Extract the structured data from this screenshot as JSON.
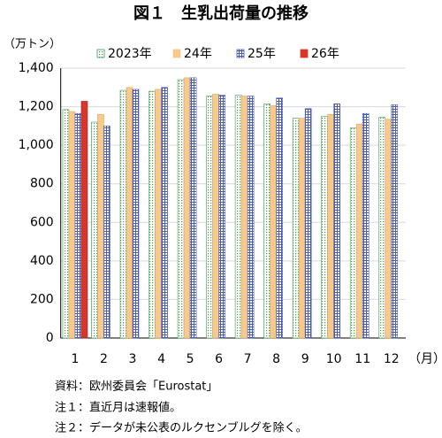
{
  "chart_data": {
    "type": "bar",
    "title": "図１　生乳出荷量の推移",
    "y_label": "（万トン）",
    "x_label": "（月）",
    "categories": [
      "1",
      "2",
      "3",
      "4",
      "5",
      "6",
      "7",
      "8",
      "9",
      "10",
      "11",
      "12"
    ],
    "series": [
      {
        "name": "2023年",
        "color": "#3f9a52",
        "pattern": "dots",
        "values": [
          1185,
          1120,
          1285,
          1280,
          1340,
          1255,
          1260,
          1215,
          1140,
          1150,
          1090,
          1145
        ]
      },
      {
        "name": "24年",
        "color": "#f8c98c",
        "pattern": "solid",
        "values": [
          1175,
          1160,
          1300,
          1290,
          1350,
          1265,
          1255,
          1205,
          1140,
          1160,
          1110,
          1135
        ]
      },
      {
        "name": "25年",
        "color": "#4a5cb0",
        "pattern": "grid",
        "values": [
          1165,
          1100,
          1290,
          1300,
          1350,
          1260,
          1255,
          1245,
          1190,
          1215,
          1165,
          1210
        ]
      },
      {
        "name": "26年",
        "color": "#d9362a",
        "pattern": "solid",
        "values": [
          1228,
          null,
          null,
          null,
          null,
          null,
          null,
          null,
          null,
          null,
          null,
          null
        ]
      }
    ],
    "ylim": [
      0,
      1400
    ],
    "yticks": [
      0,
      200,
      400,
      600,
      800,
      {
        "value": 1000,
        "label": "1,000"
      },
      {
        "value": 1200,
        "label": "1,200"
      },
      {
        "value": 1400,
        "label": "1,400"
      }
    ],
    "grid": true,
    "legend": "top",
    "notes": [
      "資料：欧州委員会「Eurostat」",
      "注１：直近月は速報値。",
      "注２：データが未公表のルクセンブルグを除く。"
    ]
  }
}
